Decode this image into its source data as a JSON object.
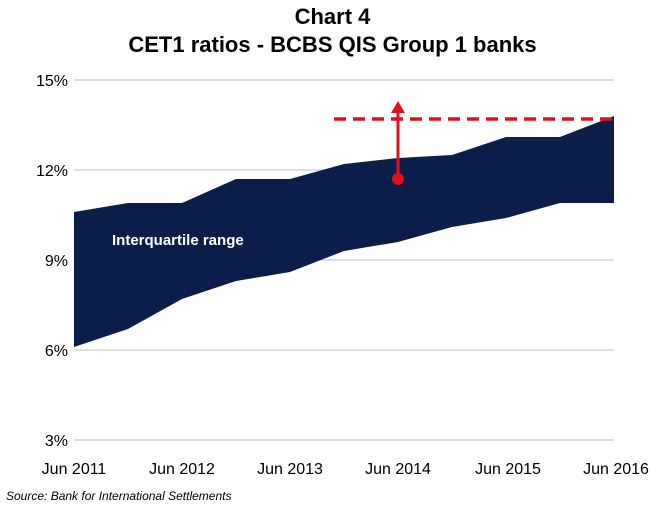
{
  "title": "Chart 4",
  "subtitle": "CET1 ratios - BCBS QIS Group 1 banks",
  "source": "Source:  Bank for International Settlements",
  "colors": {
    "band": "#0b1e4a",
    "arrow": "#e0101e",
    "grid": "#bfbfbf"
  },
  "chart_data": {
    "type": "area",
    "title": "CET1 ratios - BCBS QIS Group 1 banks",
    "xlabel": "",
    "ylabel": "",
    "y_ticks": [
      "3%",
      "6%",
      "9%",
      "12%",
      "15%"
    ],
    "ylim": [
      3,
      15
    ],
    "x_tick_labels": [
      "Jun 2011",
      "Jun 2012",
      "Jun 2013",
      "Jun 2014",
      "Jun 2015",
      "Jun 2016"
    ],
    "x": [
      "Jun 2011",
      "Dec 2011",
      "Jun 2012",
      "Dec 2012",
      "Jun 2013",
      "Dec 2013",
      "Jun 2014",
      "Dec 2014",
      "Jun 2015",
      "Dec 2015",
      "Jun 2016"
    ],
    "series": [
      {
        "name": "Interquartile range (upper)",
        "values": [
          10.6,
          10.9,
          10.9,
          11.7,
          11.7,
          12.2,
          12.4,
          12.5,
          13.1,
          13.1,
          13.8
        ]
      },
      {
        "name": "Interquartile range (lower)",
        "values": [
          6.1,
          6.7,
          7.7,
          8.3,
          8.6,
          9.3,
          9.6,
          10.1,
          10.4,
          10.9,
          10.9
        ]
      }
    ],
    "band_label": "Interquartile range",
    "dashed_target": {
      "value": 13.7,
      "from": "Dec 2013",
      "to": "Jun 2016"
    },
    "arrow": {
      "x": "Jun 2014",
      "from": 11.7,
      "to": 14.3
    },
    "grid": true,
    "legend": "none"
  }
}
